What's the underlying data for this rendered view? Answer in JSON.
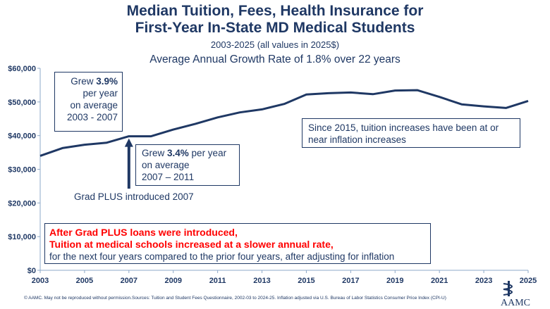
{
  "header": {
    "title_line1": "Median Tuition, Fees, Health Insurance for",
    "title_line2": "First-Year In-State MD Medical Students",
    "subtitle": "2003-2025 (all values in 2025$)",
    "growth_note": "Average Annual Growth Rate of 1.8% over 22 years"
  },
  "annotations": {
    "box1_pre": "Grew ",
    "box1_bold": "3.9%",
    "box1_l2": "per year",
    "box1_l3": "on average",
    "box1_l4": "2003 - 2007",
    "box2_pre": "Grew ",
    "box2_bold": "3.4%",
    "box2_post": " per year",
    "box2_l2": "on average",
    "box2_l3": "2007 – 2011",
    "box3_l1": "Since 2015, tuition increases have been at or",
    "box3_l2": "near inflation increases",
    "grad_plus": "Grad PLUS introduced 2007",
    "red_l1": "After Grad PLUS loans were introduced,",
    "red_l2": "Tuition at medical schools increased at a slower annual rate,",
    "black_l3": "for the next four years compared to the prior four years, after adjusting for inflation"
  },
  "footer": {
    "copyright": "© AAMC. May not be reproduced without permission.",
    "sources": "Sources: Tuition and Student Fees Questionnaire, 2002-03 to 2024-25. Inflation adjusted via U.S. Bureau of Labor Statistics Consumer Price Index (CPI-U)",
    "logo_text": "AAMC"
  },
  "colors": {
    "line": "#1f3864",
    "text": "#1f3864",
    "highlight": "#ff0000",
    "grid": "#d9d9d9"
  },
  "chart_data": {
    "type": "line",
    "title": "Median Tuition, Fees, Health Insurance for First-Year In-State MD Medical Students",
    "xlabel": "",
    "ylabel": "",
    "xlim": [
      2003,
      2025
    ],
    "ylim": [
      0,
      60000
    ],
    "x_ticks": [
      2003,
      2005,
      2007,
      2009,
      2011,
      2013,
      2015,
      2017,
      2019,
      2021,
      2023,
      2025
    ],
    "y_ticks": [
      0,
      10000,
      20000,
      30000,
      40000,
      50000,
      60000
    ],
    "y_tick_labels": [
      "$0",
      "$10,000",
      "$20,000",
      "$30,000",
      "$40,000",
      "$50,000",
      "$60,000"
    ],
    "grid": false,
    "series": [
      {
        "x": [
          2003,
          2004,
          2005,
          2006,
          2007,
          2008,
          2009,
          2010,
          2011,
          2012,
          2013,
          2014,
          2015,
          2016,
          2017,
          2018,
          2019,
          2020,
          2021,
          2022,
          2023,
          2024,
          2025
        ],
        "values": [
          34000,
          36300,
          37300,
          37900,
          39800,
          39800,
          41800,
          43500,
          45400,
          46900,
          47800,
          49400,
          52200,
          52600,
          52800,
          52300,
          53400,
          53500,
          51500,
          49300,
          48700,
          48200,
          50300
        ]
      }
    ]
  }
}
